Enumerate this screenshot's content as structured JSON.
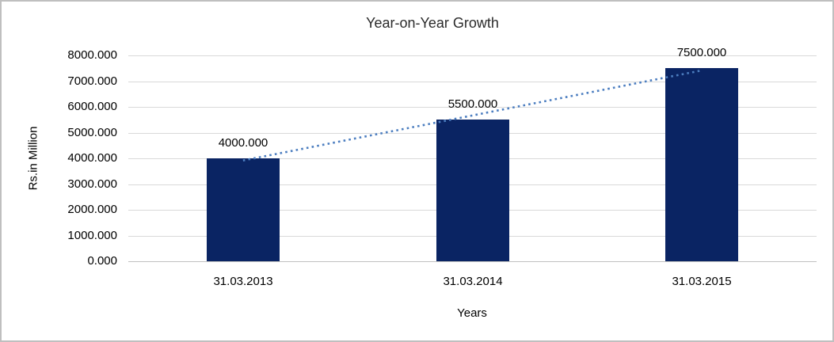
{
  "chart_data": {
    "type": "bar",
    "title": "Year-on-Year Growth",
    "xlabel": "Years",
    "ylabel": "Rs.in Million",
    "categories": [
      "31.03.2013",
      "31.03.2014",
      "31.03.2015"
    ],
    "values": [
      4000,
      5500,
      7500
    ],
    "data_labels": [
      "4000.000",
      "5500.000",
      "7500.000"
    ],
    "ylim": [
      0,
      8000
    ],
    "ytick_step": 1000,
    "ytick_labels": [
      "0.000",
      "1000.000",
      "2000.000",
      "3000.000",
      "4000.000",
      "5000.000",
      "6000.000",
      "7000.000",
      "8000.000"
    ],
    "grid": true,
    "legend": "none",
    "bar_color": "#0a2463",
    "gridline_color": "#d9d9d9",
    "axis_line_color": "#c0c0c0",
    "trendline": {
      "type": "linear",
      "style": "dotted",
      "color": "#4c7ec0"
    }
  }
}
